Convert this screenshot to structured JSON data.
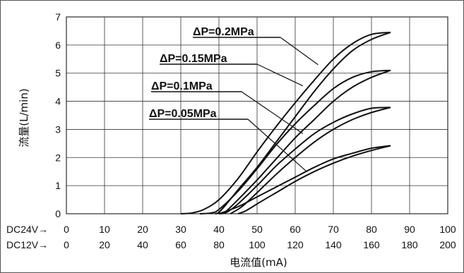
{
  "chart_data": {
    "type": "line",
    "ylabel": "流量(L/min)",
    "xlabel": "电流值(mA)",
    "ylim": [
      0,
      7
    ],
    "yticks": [
      0,
      1,
      2,
      3,
      4,
      5,
      6,
      7
    ],
    "grid": true,
    "x_axes": [
      {
        "name": "DC24V→",
        "ticks": [
          0,
          10,
          20,
          30,
          40,
          50,
          60,
          70,
          80,
          90,
          100
        ],
        "xlim": [
          0,
          100
        ]
      },
      {
        "name": "DC12V→",
        "ticks": [
          0,
          20,
          40,
          60,
          80,
          100,
          120,
          140,
          160,
          180,
          200
        ],
        "xlim": [
          0,
          200
        ]
      }
    ],
    "series": [
      {
        "name": "ΔP=0.2MPa",
        "rising": [
          [
            30,
            0
          ],
          [
            33,
            0.03
          ],
          [
            36,
            0.15
          ],
          [
            40,
            0.5
          ],
          [
            45,
            1.25
          ],
          [
            50,
            2.2
          ],
          [
            55,
            3.1
          ],
          [
            60,
            3.95
          ],
          [
            65,
            4.75
          ],
          [
            70,
            5.5
          ],
          [
            75,
            6.05
          ],
          [
            80,
            6.38
          ],
          [
            85,
            6.45
          ]
        ],
        "falling": [
          [
            85,
            6.45
          ],
          [
            80,
            6.2
          ],
          [
            75,
            5.8
          ],
          [
            70,
            5.15
          ],
          [
            65,
            4.35
          ],
          [
            60,
            3.45
          ],
          [
            55,
            2.55
          ],
          [
            50,
            1.65
          ],
          [
            45,
            0.85
          ],
          [
            42,
            0.35
          ],
          [
            40,
            0.05
          ],
          [
            39,
            0
          ]
        ]
      },
      {
        "name": "ΔP=0.15MPa",
        "rising": [
          [
            35,
            0
          ],
          [
            38,
            0.03
          ],
          [
            40,
            0.15
          ],
          [
            45,
            0.8
          ],
          [
            50,
            1.6
          ],
          [
            55,
            2.45
          ],
          [
            60,
            3.2
          ],
          [
            65,
            3.85
          ],
          [
            70,
            4.45
          ],
          [
            75,
            4.85
          ],
          [
            80,
            5.05
          ],
          [
            85,
            5.1
          ]
        ],
        "falling": [
          [
            85,
            5.1
          ],
          [
            80,
            4.85
          ],
          [
            75,
            4.5
          ],
          [
            70,
            4.0
          ],
          [
            65,
            3.35
          ],
          [
            60,
            2.7
          ],
          [
            55,
            1.95
          ],
          [
            50,
            1.2
          ],
          [
            45,
            0.5
          ],
          [
            42,
            0.1
          ],
          [
            41,
            0
          ]
        ]
      },
      {
        "name": "ΔP=0.1MPa",
        "rising": [
          [
            40,
            0
          ],
          [
            42,
            0.05
          ],
          [
            45,
            0.35
          ],
          [
            50,
            1.0
          ],
          [
            55,
            1.7
          ],
          [
            60,
            2.3
          ],
          [
            65,
            2.85
          ],
          [
            70,
            3.25
          ],
          [
            75,
            3.55
          ],
          [
            80,
            3.75
          ],
          [
            85,
            3.78
          ]
        ],
        "falling": [
          [
            85,
            3.78
          ],
          [
            80,
            3.6
          ],
          [
            75,
            3.35
          ],
          [
            70,
            3.0
          ],
          [
            65,
            2.55
          ],
          [
            60,
            2.0
          ],
          [
            55,
            1.4
          ],
          [
            50,
            0.75
          ],
          [
            46,
            0.25
          ],
          [
            43,
            0
          ]
        ]
      },
      {
        "name": "ΔP=0.05MPa",
        "rising": [
          [
            40,
            0
          ],
          [
            45,
            0.25
          ],
          [
            50,
            0.6
          ],
          [
            55,
            0.95
          ],
          [
            60,
            1.3
          ],
          [
            65,
            1.65
          ],
          [
            70,
            1.95
          ],
          [
            75,
            2.15
          ],
          [
            80,
            2.33
          ],
          [
            85,
            2.42
          ]
        ],
        "falling": [
          [
            85,
            2.42
          ],
          [
            80,
            2.25
          ],
          [
            75,
            2.05
          ],
          [
            70,
            1.8
          ],
          [
            65,
            1.5
          ],
          [
            60,
            1.15
          ],
          [
            55,
            0.75
          ],
          [
            50,
            0.35
          ],
          [
            47,
            0.1
          ],
          [
            45,
            0
          ]
        ]
      }
    ],
    "annotations": [
      {
        "text": "ΔP=0.2MPa",
        "series": 0
      },
      {
        "text": "ΔP=0.15MPa",
        "series": 1
      },
      {
        "text": "ΔP=0.1MPa",
        "series": 2
      },
      {
        "text": "ΔP=0.05MPa",
        "series": 3
      }
    ]
  }
}
